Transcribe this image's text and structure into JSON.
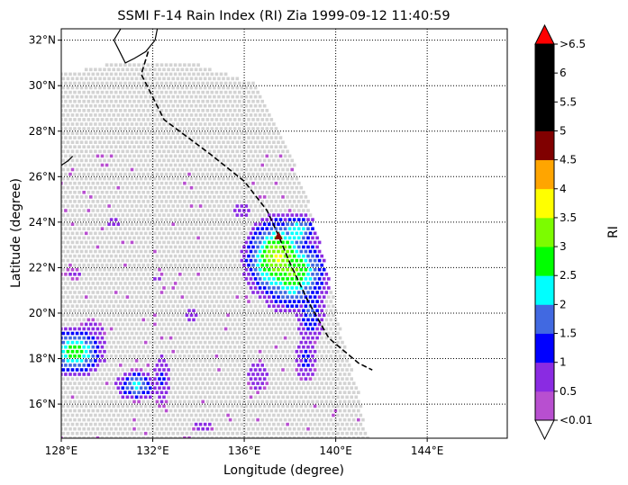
{
  "chart_data": {
    "type": "heatmap",
    "title": "SSMI F-14 Rain Index (RI) Zia 1999-09-12 11:40:59",
    "xlabel": "Longitude (degree)",
    "ylabel": "Latitude (degree)",
    "xlim": [
      128,
      147.5
    ],
    "ylim": [
      14.5,
      32.5
    ],
    "xticks": [
      128,
      132,
      136,
      140,
      144
    ],
    "xtick_labels": [
      "128°E",
      "132°E",
      "136°E",
      "140°E",
      "144°E"
    ],
    "yticks": [
      16,
      18,
      20,
      22,
      24,
      26,
      28,
      30,
      32
    ],
    "ytick_labels": [
      "16°N",
      "18°N",
      "20°N",
      "22°N",
      "24°N",
      "26°N",
      "28°N",
      "30°N",
      "32°N"
    ],
    "grid": true,
    "colorbar": {
      "label": "RI",
      "levels": [
        0.01,
        0.5,
        1,
        1.5,
        2,
        2.5,
        3,
        3.5,
        4,
        4.5,
        5,
        5.5,
        6,
        6.5
      ],
      "colors": [
        "#b84fd0",
        "#8a2be2",
        "#0000ff",
        "#4169e1",
        "#00ffff",
        "#00ff00",
        "#7cfc00",
        "#ffff00",
        "#ffa500",
        "#800000",
        "#000000",
        "#000000",
        "#000000"
      ],
      "under_color": "#ffffff",
      "over_color": "#ff0000",
      "tick_labels": [
        "<0.01",
        "0.5",
        "1",
        "1.5",
        "2",
        "2.5",
        "3",
        "3.5",
        "4",
        "4.5",
        "5",
        "5.5",
        "6",
        ">6.5"
      ]
    },
    "no_rain_color": "#d3d3d3",
    "swath": {
      "west_edge": [
        [
          128.0,
          30.5
        ],
        [
          128.0,
          14.5
        ]
      ],
      "north_edge": [
        [
          128.0,
          30.5
        ],
        [
          130.5,
          31.0
        ],
        [
          134.0,
          30.9
        ],
        [
          136.5,
          30.1
        ]
      ],
      "east_edge": [
        [
          136.5,
          30.1
        ],
        [
          137.8,
          27.5
        ],
        [
          138.8,
          25.0
        ],
        [
          139.6,
          22.0
        ],
        [
          140.3,
          19.0
        ],
        [
          141.0,
          16.5
        ],
        [
          141.4,
          14.5
        ]
      ]
    },
    "rain_cells": [
      {
        "lon": 137.5,
        "lat": 22.4,
        "rx": 1.3,
        "ry": 1.6,
        "peak": 3.6
      },
      {
        "lon": 138.1,
        "lat": 21.8,
        "rx": 1.4,
        "ry": 1.5,
        "peak": 3.1
      },
      {
        "lon": 138.3,
        "lat": 23.6,
        "rx": 0.8,
        "ry": 0.7,
        "peak": 2.5
      },
      {
        "lon": 138.9,
        "lat": 20.2,
        "rx": 0.6,
        "ry": 1.5,
        "peak": 1.6
      },
      {
        "lon": 138.7,
        "lat": 18.0,
        "rx": 0.5,
        "ry": 1.1,
        "peak": 1.2
      },
      {
        "lon": 128.6,
        "lat": 18.3,
        "rx": 1.1,
        "ry": 0.9,
        "peak": 3.0
      },
      {
        "lon": 129.3,
        "lat": 19.0,
        "rx": 0.8,
        "ry": 0.9,
        "peak": 0.9
      },
      {
        "lon": 131.3,
        "lat": 16.8,
        "rx": 0.8,
        "ry": 0.6,
        "peak": 2.2
      },
      {
        "lon": 132.4,
        "lat": 17.0,
        "rx": 0.4,
        "ry": 1.3,
        "peak": 1.1
      },
      {
        "lon": 133.7,
        "lat": 19.9,
        "rx": 0.6,
        "ry": 0.4,
        "peak": 0.7
      },
      {
        "lon": 136.6,
        "lat": 17.2,
        "rx": 0.6,
        "ry": 0.9,
        "peak": 0.9
      },
      {
        "lon": 135.9,
        "lat": 24.5,
        "rx": 0.6,
        "ry": 0.5,
        "peak": 0.7
      },
      {
        "lon": 130.3,
        "lat": 24.0,
        "rx": 0.3,
        "ry": 0.3,
        "peak": 1.0
      },
      {
        "lon": 138.5,
        "lat": 26.5,
        "rx": 0.3,
        "ry": 0.3,
        "peak": 0.6
      },
      {
        "lon": 139.0,
        "lat": 27.7,
        "rx": 0.2,
        "ry": 0.2,
        "peak": 0.5
      },
      {
        "lon": 128.6,
        "lat": 21.7,
        "rx": 0.5,
        "ry": 0.3,
        "peak": 0.8
      },
      {
        "lon": 134.2,
        "lat": 15.0,
        "rx": 0.8,
        "ry": 0.4,
        "peak": 0.7
      },
      {
        "lon": 132.2,
        "lat": 21.5,
        "rx": 0.3,
        "ry": 0.3,
        "peak": 0.6
      }
    ],
    "storm_track": [
      [
        131.8,
        31.5
      ],
      [
        131.5,
        30.5
      ],
      [
        132.5,
        28.5
      ],
      [
        134.5,
        27.0
      ],
      [
        136.0,
        25.8
      ],
      [
        137.0,
        24.5
      ],
      [
        137.5,
        23.4
      ],
      [
        138.0,
        22.2
      ],
      [
        138.8,
        20.5
      ],
      [
        139.7,
        18.9
      ],
      [
        141.0,
        17.8
      ],
      [
        141.6,
        17.5
      ]
    ],
    "storm_center": [
      137.5,
      23.4
    ],
    "coastline": [
      [
        [
          130.6,
          32.5
        ],
        [
          130.3,
          32.0
        ],
        [
          130.5,
          31.6
        ],
        [
          130.8,
          31.0
        ],
        [
          131.2,
          31.2
        ],
        [
          131.7,
          31.5
        ],
        [
          132.1,
          32.0
        ],
        [
          132.2,
          32.5
        ]
      ],
      [
        [
          128.0,
          26.5
        ],
        [
          128.3,
          26.7
        ],
        [
          128.5,
          26.9
        ]
      ]
    ]
  }
}
